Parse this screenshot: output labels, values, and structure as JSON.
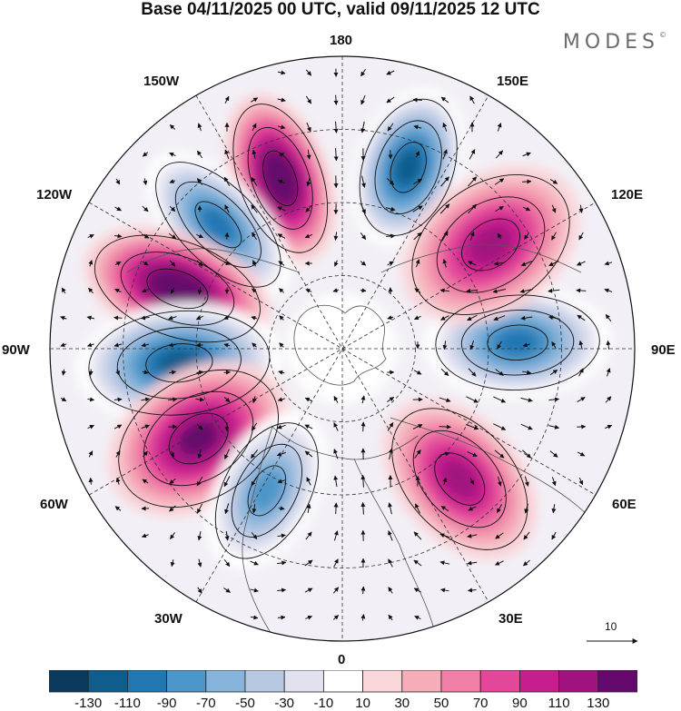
{
  "title": "Base 04/11/2025 00 UTC, valid 09/11/2025 12 UTC",
  "brand": "MODES",
  "brand_mark": "©",
  "longitude_labels": {
    "l180": "180",
    "l150w": "150W",
    "l150e": "150E",
    "l120w": "120W",
    "l120e": "120E",
    "l90w": "90W",
    "l90e": "90E",
    "l60w": "60W",
    "l60e": "60E",
    "l30w": "30W",
    "l30e": "30E",
    "l0": "0"
  },
  "wind_scale_label": "10",
  "colorbar": {
    "ticks": [
      "-130",
      "-110",
      "-90",
      "-70",
      "-50",
      "-30",
      "-10",
      "10",
      "30",
      "50",
      "70",
      "90",
      "110",
      "130"
    ],
    "colors": [
      "#0b3a5c",
      "#0f5d8c",
      "#2177b2",
      "#4d96c9",
      "#86b3da",
      "#b8c8e3",
      "#e1e1f0",
      "#ffffff",
      "#f9d6da",
      "#f5aeb9",
      "#ef7fa6",
      "#e3479a",
      "#c61f8d",
      "#a0137f",
      "#650a6c"
    ]
  },
  "anomaly_centers": [
    {
      "name": "150W high",
      "lon": -160,
      "value": 130
    },
    {
      "name": "155E low",
      "lon": 160,
      "value": -110
    },
    {
      "name": "140W low",
      "lon": -135,
      "value": -90
    },
    {
      "name": "110W high",
      "lon": -110,
      "value": 130
    },
    {
      "name": "90W low",
      "lon": -85,
      "value": -110
    },
    {
      "name": "60W high",
      "lon": -58,
      "value": 110
    },
    {
      "name": "30W low",
      "lon": -28,
      "value": -70
    },
    {
      "name": "45E high",
      "lon": 42,
      "value": 90
    },
    {
      "name": "90E low",
      "lon": 92,
      "value": -90
    },
    {
      "name": "120E high",
      "lon": 125,
      "value": 90
    }
  ]
}
